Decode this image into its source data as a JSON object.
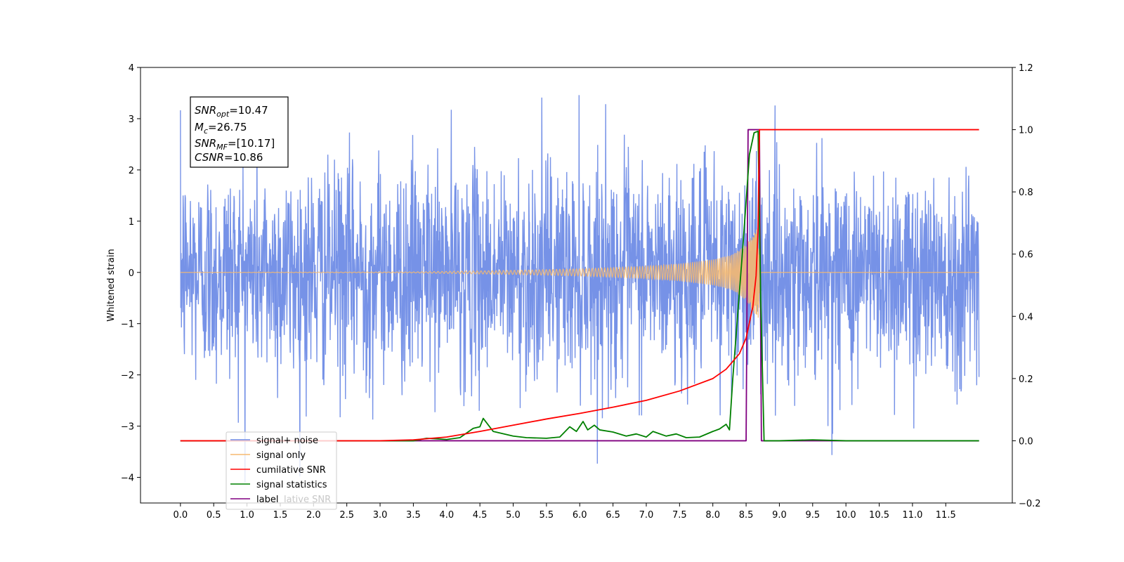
{
  "chart_data": {
    "type": "line",
    "xlabel": "",
    "ylabel_left": "Whitened strain",
    "ylabel_right": "",
    "xlim": [
      -0.6,
      12.5
    ],
    "ylim_left": [
      -4.5,
      4
    ],
    "ylim_right": [
      -0.2,
      1.2
    ],
    "x_ticks": [
      "0.0",
      "0.5",
      "1.0",
      "1.5",
      "2.0",
      "2.5",
      "3.0",
      "3.5",
      "4.0",
      "4.5",
      "5.0",
      "5.5",
      "6.0",
      "6.5",
      "7.0",
      "7.5",
      "8.0",
      "8.5",
      "9.0",
      "9.5",
      "10.0",
      "10.5",
      "11.0",
      "11.5"
    ],
    "y_ticks_left": [
      "4",
      "3",
      "2",
      "1",
      "0",
      "−1",
      "−2",
      "−3",
      "−4"
    ],
    "y_ticks_right": [
      "1.2",
      "1.0",
      "0.8",
      "0.6",
      "0.4",
      "0.2",
      "0.0",
      "−0.2"
    ],
    "grid": false,
    "legend_position": "lower-left",
    "colors": {
      "noise": "#6f8ce6",
      "signal": "#f5b971",
      "cumulative": "#ff0000",
      "statistics": "#008000",
      "label": "#800080"
    },
    "annotation": {
      "line1": {
        "base": "SNR",
        "sub": "opt",
        "value": "=10.47"
      },
      "line2": {
        "base": "M",
        "sub": "c",
        "value": "=26.75"
      },
      "line3": {
        "base": "SNR",
        "sub": "MF",
        "value": "=[10.17]"
      },
      "line4": {
        "base": "CSNR",
        "sub": "",
        "value": "=10.86"
      }
    },
    "series": [
      {
        "name": "signal+ noise",
        "axis": "left",
        "description_values": {
          "x_range": [
            0.0,
            12.0
          ],
          "typical_amplitude": 1.6,
          "peak_values": [
            3.6,
            -4.1
          ]
        }
      },
      {
        "name": "signal only",
        "axis": "left",
        "x": [
          0.0,
          3.5,
          4.0,
          5.0,
          6.0,
          7.0,
          7.5,
          8.0,
          8.3,
          8.5,
          8.6,
          8.68,
          8.72,
          12.0
        ],
        "envelope": [
          0.0,
          0.01,
          0.02,
          0.04,
          0.07,
          0.12,
          0.17,
          0.25,
          0.35,
          0.55,
          0.75,
          0.95,
          0.0,
          0.0
        ]
      },
      {
        "name": "cumilative SNR",
        "axis": "right",
        "x": [
          0.0,
          3.0,
          3.5,
          4.0,
          4.5,
          5.0,
          5.5,
          6.0,
          6.5,
          7.0,
          7.5,
          8.0,
          8.2,
          8.4,
          8.5,
          8.6,
          8.65,
          8.68,
          8.7,
          12.0
        ],
        "y": [
          0.0,
          0.0,
          0.003,
          0.012,
          0.03,
          0.05,
          0.07,
          0.088,
          0.108,
          0.13,
          0.16,
          0.2,
          0.23,
          0.28,
          0.33,
          0.43,
          0.53,
          0.68,
          1.0,
          1.0
        ]
      },
      {
        "name": "signal statistics",
        "axis": "right",
        "x": [
          0.0,
          3.5,
          3.7,
          4.0,
          4.2,
          4.3,
          4.4,
          4.5,
          4.55,
          4.7,
          5.0,
          5.2,
          5.5,
          5.7,
          5.85,
          5.95,
          6.05,
          6.12,
          6.22,
          6.3,
          6.5,
          6.7,
          6.85,
          7.0,
          7.1,
          7.3,
          7.45,
          7.6,
          7.8,
          8.0,
          8.1,
          8.2,
          8.25,
          8.3,
          8.45,
          8.55,
          8.62,
          8.68,
          8.72,
          8.77,
          9.0,
          9.5,
          10.0,
          12.0
        ],
        "y": [
          0.0,
          0.0,
          0.008,
          0.004,
          0.01,
          0.025,
          0.04,
          0.045,
          0.072,
          0.03,
          0.015,
          0.01,
          0.008,
          0.012,
          0.045,
          0.03,
          0.062,
          0.035,
          0.05,
          0.035,
          0.028,
          0.015,
          0.022,
          0.012,
          0.03,
          0.015,
          0.022,
          0.01,
          0.012,
          0.03,
          0.038,
          0.053,
          0.035,
          0.2,
          0.62,
          0.92,
          0.99,
          0.995,
          0.45,
          0.0,
          0.0,
          0.003,
          0.0,
          0.0
        ]
      },
      {
        "name": "label",
        "axis": "right",
        "x": [
          0.0,
          8.5,
          8.53,
          8.7,
          8.73,
          12.0
        ],
        "y": [
          0.0,
          0.0,
          1.0,
          1.0,
          0.0,
          0.0
        ]
      }
    ],
    "legend_entries": [
      "signal+ noise",
      "signal only",
      "cumilative SNR",
      "signal statistics",
      "label"
    ],
    "legend_ghost_text": "lative SNR"
  }
}
